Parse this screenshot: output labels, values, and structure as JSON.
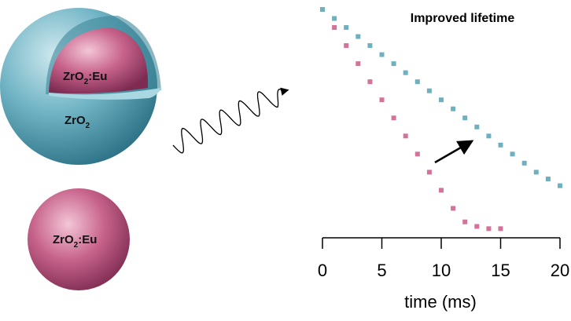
{
  "labels": {
    "core_shell": {
      "core": {
        "main": "ZrO",
        "sub": "2",
        "rest": ":Eu"
      },
      "shell": {
        "main": "ZrO",
        "sub": "2"
      }
    },
    "bare": {
      "main": "ZrO",
      "sub": "2",
      "rest": ":Eu"
    }
  },
  "chart_data": {
    "type": "scatter",
    "title": "Improved lifetime",
    "x_label": "time (ms)",
    "xlim": [
      0,
      20
    ],
    "xticks": [
      0,
      5,
      10,
      15,
      20
    ],
    "ylim": [
      0,
      1
    ],
    "series": [
      {
        "color": "#d4729a",
        "x": [
          0,
          1,
          2,
          3,
          4,
          5,
          6,
          7,
          8,
          9,
          10,
          11,
          12,
          13,
          14,
          15
        ],
        "values": [
          1,
          0.92,
          0.84,
          0.76,
          0.68,
          0.6,
          0.52,
          0.44,
          0.36,
          0.28,
          0.2,
          0.12,
          0.06,
          0.04,
          0.03,
          0.03
        ]
      },
      {
        "color": "#6fb0bf",
        "x": [
          0,
          1,
          2,
          3,
          4,
          5,
          6,
          7,
          8,
          9,
          10,
          11,
          12,
          13,
          14,
          15,
          16,
          17,
          18,
          19,
          20
        ],
        "values": [
          1,
          0.96,
          0.92,
          0.88,
          0.84,
          0.8,
          0.76,
          0.72,
          0.68,
          0.64,
          0.6,
          0.56,
          0.52,
          0.48,
          0.44,
          0.4,
          0.36,
          0.32,
          0.28,
          0.25,
          0.22
        ]
      }
    ]
  }
}
